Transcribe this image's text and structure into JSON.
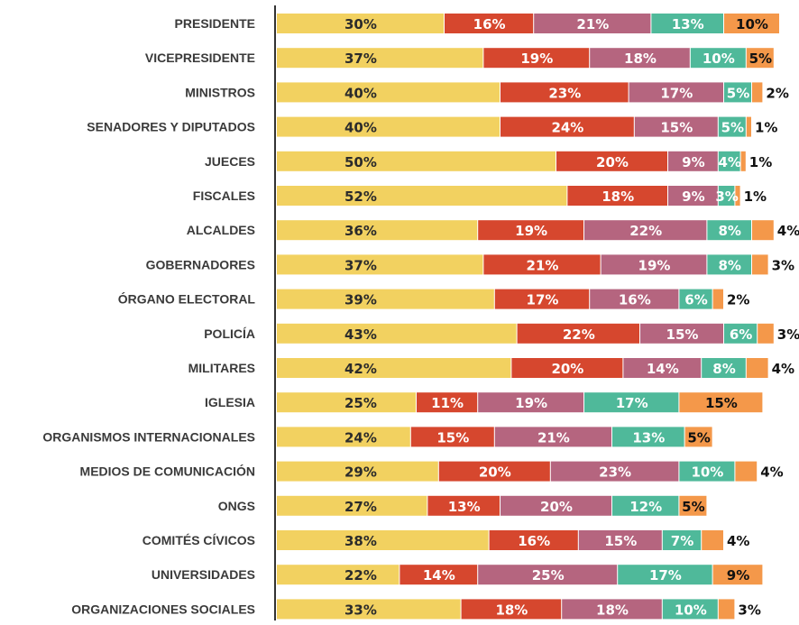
{
  "chart_data": {
    "type": "bar",
    "orientation": "horizontal",
    "stacked": true,
    "xlim": [
      0,
      100
    ],
    "grid": false,
    "legend": "none",
    "categories": [
      "PRESIDENTE",
      "VICEPRESIDENTE",
      "MINISTROS",
      "SENADORES Y DIPUTADOS",
      "JUECES",
      "FISCALES",
      "ALCALDES",
      "GOBERNADORES",
      "ÓRGANO ELECTORAL",
      "POLICÍA",
      "MILITARES",
      "IGLESIA",
      "ORGANISMOS INTERNACIONALES",
      "MEDIOS DE COMUNICACIÓN",
      "ONGS",
      "COMITÉS CÍVICOS",
      "UNIVERSIDADES",
      "ORGANIZACIONES SOCIALES"
    ],
    "series": [
      {
        "color": "#f2d160",
        "label_color": "#2b2b2b",
        "values": [
          30,
          37,
          40,
          40,
          50,
          52,
          36,
          37,
          39,
          43,
          42,
          25,
          24,
          29,
          27,
          38,
          22,
          33
        ]
      },
      {
        "color": "#d6472e",
        "label_color": "#ffffff",
        "values": [
          16,
          19,
          23,
          24,
          20,
          18,
          19,
          21,
          17,
          22,
          20,
          11,
          15,
          20,
          13,
          16,
          14,
          18
        ]
      },
      {
        "color": "#b5657f",
        "label_color": "#ffffff",
        "values": [
          21,
          18,
          17,
          15,
          9,
          9,
          22,
          19,
          16,
          15,
          14,
          19,
          21,
          23,
          20,
          15,
          25,
          18
        ]
      },
      {
        "color": "#4fb99a",
        "label_color": "#ffffff",
        "values": [
          13,
          10,
          5,
          5,
          4,
          3,
          8,
          8,
          6,
          6,
          8,
          17,
          13,
          10,
          12,
          7,
          17,
          10
        ]
      },
      {
        "color": "#f4984a",
        "label_color": "#111111",
        "values": [
          10,
          5,
          2,
          1,
          1,
          1,
          4,
          3,
          2,
          3,
          4,
          15,
          5,
          4,
          5,
          4,
          9,
          3
        ]
      }
    ],
    "value_suffix": "%"
  }
}
